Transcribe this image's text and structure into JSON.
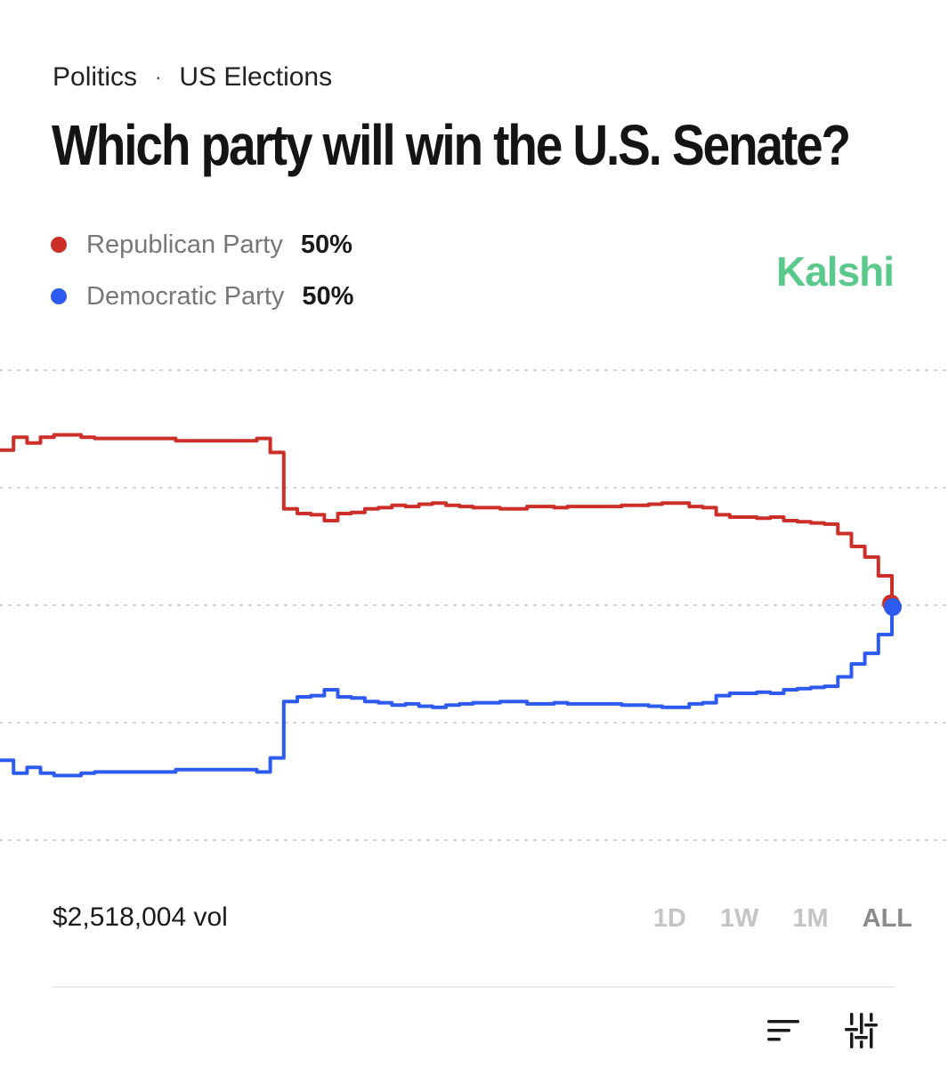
{
  "breadcrumb": {
    "category": "Politics",
    "separator": "·",
    "subcategory": "US Elections"
  },
  "market": {
    "title": "Which party will win the U.S. Senate?"
  },
  "brand": {
    "name": "Kalshi",
    "color": "#5bc98c"
  },
  "legend": [
    {
      "name": "Republican Party",
      "value": "50%",
      "color": "#cc2f27"
    },
    {
      "name": "Democratic Party",
      "value": "50%",
      "color": "#2e5bef"
    }
  ],
  "footer": {
    "volume": "$2,518,004 vol"
  },
  "time_ranges": [
    {
      "label": "1D",
      "active": false
    },
    {
      "label": "1W",
      "active": false
    },
    {
      "label": "1M",
      "active": false
    },
    {
      "label": "ALL",
      "active": true
    }
  ],
  "toolbar": {
    "sort_icon": "sort-icon",
    "settings_icon": "sliders-icon"
  },
  "chart_data": {
    "type": "line",
    "x_label": "",
    "y_label": "",
    "ylim": [
      0,
      100
    ],
    "gridlines": [
      30,
      40,
      50,
      60,
      70
    ],
    "series": [
      {
        "name": "Republican Party",
        "color": "#cc2f27",
        "values": [
          63.2,
          64.3,
          63.8,
          64.3,
          64.5,
          64.5,
          64.3,
          64.2,
          64.2,
          64.2,
          64.2,
          64.2,
          64.2,
          64.0,
          64.0,
          64.0,
          64.0,
          64.0,
          64.0,
          64.2,
          63.0,
          58.2,
          57.8,
          57.7,
          57.2,
          57.8,
          57.9,
          58.2,
          58.3,
          58.5,
          58.4,
          58.6,
          58.7,
          58.5,
          58.4,
          58.3,
          58.3,
          58.2,
          58.2,
          58.4,
          58.4,
          58.3,
          58.4,
          58.4,
          58.4,
          58.4,
          58.5,
          58.5,
          58.6,
          58.7,
          58.7,
          58.4,
          58.3,
          57.7,
          57.5,
          57.5,
          57.4,
          57.5,
          57.2,
          57.1,
          57.0,
          56.9,
          56.1,
          55.0,
          54.1,
          52.5,
          50.0
        ]
      },
      {
        "name": "Democratic Party",
        "color": "#2e5bef",
        "values": [
          36.8,
          35.7,
          36.2,
          35.7,
          35.5,
          35.5,
          35.7,
          35.8,
          35.8,
          35.8,
          35.8,
          35.8,
          35.8,
          36.0,
          36.0,
          36.0,
          36.0,
          36.0,
          36.0,
          35.8,
          37.0,
          41.8,
          42.2,
          42.3,
          42.8,
          42.2,
          42.1,
          41.8,
          41.7,
          41.5,
          41.6,
          41.4,
          41.3,
          41.5,
          41.6,
          41.7,
          41.7,
          41.8,
          41.8,
          41.6,
          41.6,
          41.7,
          41.6,
          41.6,
          41.6,
          41.6,
          41.5,
          41.5,
          41.4,
          41.3,
          41.3,
          41.6,
          41.7,
          42.3,
          42.5,
          42.5,
          42.6,
          42.5,
          42.8,
          42.9,
          43.0,
          43.1,
          43.9,
          45.0,
          45.9,
          47.5,
          50.0
        ]
      }
    ]
  }
}
